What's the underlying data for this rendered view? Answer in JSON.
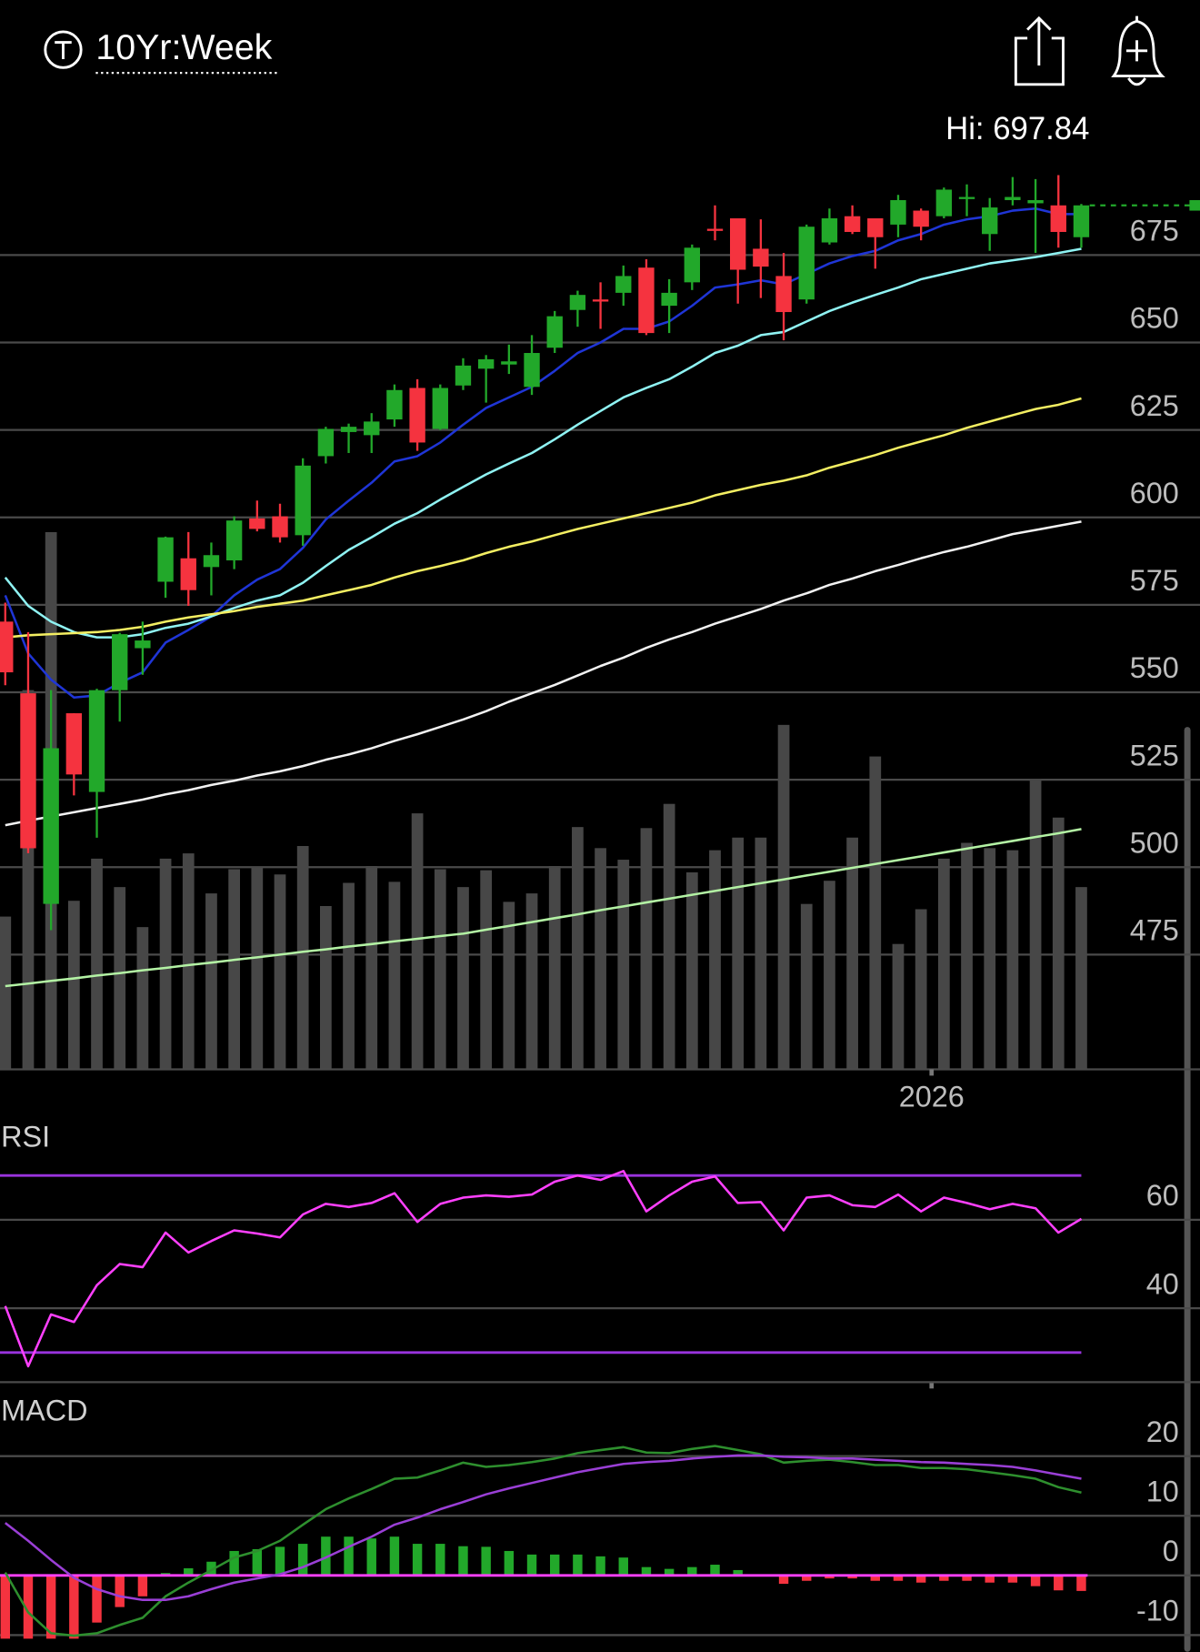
{
  "header": {
    "title": "10Yr:Week"
  },
  "chart_data": [
    {
      "type": "candlestick",
      "annotation": "Hi: 697.84",
      "categories": [
        null,
        null,
        null,
        null,
        null,
        null,
        null,
        null,
        null,
        null,
        null,
        null,
        null,
        null,
        null,
        null,
        null,
        null,
        null,
        null,
        null,
        null,
        null,
        null,
        null,
        null,
        null,
        null,
        null,
        null,
        null,
        null,
        null,
        null,
        null,
        null,
        null,
        null,
        null,
        null,
        "2026",
        null,
        null,
        null,
        null,
        null,
        null,
        null
      ],
      "open": [
        570.2,
        549.7,
        489.5,
        544.0,
        521.5,
        550.6,
        562.6,
        581.6,
        588.3,
        585.8,
        587.7,
        599.7,
        600.3,
        594.9,
        617.5,
        624.4,
        623.5,
        628.0,
        637.0,
        625.3,
        637.7,
        642.5,
        643.7,
        637.3,
        648.5,
        659.3,
        662.3,
        664.2,
        671.4,
        660.5,
        667.2,
        682.5,
        685.5,
        676.8,
        669.0,
        662.3,
        678.6,
        686.1,
        685.5,
        683.7,
        687.7,
        686.1,
        691.0,
        681.0,
        690.7,
        689.8,
        689.2,
        680.1
      ],
      "high": [
        575.6,
        567.2,
        550.6,
        544.0,
        551.0,
        567.0,
        570.2,
        594.5,
        595.8,
        592.8,
        600.3,
        604.8,
        603.9,
        616.9,
        625.9,
        626.8,
        629.8,
        638.0,
        639.5,
        638.0,
        645.5,
        646.4,
        649.4,
        652.1,
        659.0,
        664.8,
        667.2,
        672.0,
        673.8,
        668.1,
        678.0,
        689.2,
        685.5,
        685.2,
        675.6,
        683.7,
        688.3,
        689.2,
        685.5,
        692.2,
        688.3,
        694.3,
        695.2,
        691.3,
        697.3,
        696.7,
        697.84,
        689.6
      ],
      "low": [
        552.0,
        504.0,
        482.0,
        520.5,
        508.4,
        541.6,
        555.0,
        577.0,
        574.7,
        577.7,
        585.2,
        596.0,
        592.8,
        591.9,
        615.4,
        618.4,
        618.4,
        625.9,
        619.0,
        625.0,
        636.4,
        632.8,
        641.0,
        635.0,
        647.0,
        654.5,
        653.9,
        660.5,
        652.1,
        652.7,
        665.0,
        679.2,
        661.1,
        662.7,
        650.6,
        661.1,
        678.0,
        681.0,
        671.1,
        680.1,
        679.2,
        685.5,
        686.1,
        676.2,
        689.2,
        675.6,
        677.1,
        677.1
      ],
      "close": [
        555.7,
        505.4,
        534.0,
        526.5,
        550.6,
        566.6,
        564.8,
        594.3,
        579.2,
        589.2,
        599.1,
        596.7,
        594.3,
        614.8,
        625.3,
        625.9,
        627.4,
        636.4,
        621.4,
        637.0,
        643.4,
        645.2,
        644.6,
        647.0,
        657.5,
        663.6,
        661.7,
        669.0,
        652.7,
        664.2,
        677.1,
        681.9,
        670.8,
        671.7,
        658.7,
        683.1,
        685.5,
        681.6,
        680.1,
        690.7,
        683.1,
        693.7,
        691.6,
        688.6,
        691.6,
        690.7,
        681.6,
        689.2
      ],
      "up_color": "#22a82a",
      "down_color": "#f5333f",
      "volume": [
        145,
        360,
        510,
        160,
        200,
        173,
        135,
        200,
        205,
        167,
        190,
        192,
        185,
        212,
        155,
        177,
        193,
        178,
        243,
        190,
        173,
        189,
        159,
        167,
        193,
        230,
        210,
        199,
        229,
        252,
        187,
        208,
        220,
        220,
        327,
        157,
        179,
        220,
        297,
        119,
        152,
        200,
        215,
        210,
        208,
        275,
        239,
        173
      ],
      "volume_color": "#474747",
      "volume_lim": [
        0,
        680
      ],
      "series": [
        {
          "color": "#1f35d6",
          "values": [
            577.7,
            561.1,
            553.6,
            548.5,
            549.1,
            552.7,
            555.7,
            564.2,
            567.8,
            571.7,
            577.7,
            582.2,
            585.2,
            591.3,
            599.4,
            604.8,
            609.9,
            616.0,
            617.5,
            621.4,
            626.5,
            631.3,
            634.3,
            637.3,
            641.9,
            647.0,
            650.0,
            653.9,
            653.9,
            656.0,
            660.5,
            665.7,
            666.6,
            667.8,
            666.6,
            669.6,
            672.6,
            674.7,
            676.2,
            679.2,
            681.0,
            683.7,
            685.2,
            686.1,
            687.7,
            688.3,
            686.7,
            686.7
          ]
        },
        {
          "color": "#8ff3f3",
          "values": [
            582.8,
            574.7,
            570.2,
            567.2,
            565.7,
            565.7,
            566.6,
            568.4,
            569.6,
            571.7,
            574.1,
            576.2,
            577.7,
            581.3,
            586.1,
            590.7,
            594.3,
            598.2,
            601.2,
            605.1,
            608.7,
            612.3,
            615.4,
            618.4,
            622.3,
            626.5,
            630.4,
            634.3,
            637.0,
            639.5,
            643.1,
            647.0,
            649.1,
            652.1,
            653.0,
            656.0,
            659.0,
            661.4,
            663.6,
            665.7,
            668.1,
            669.6,
            671.1,
            672.6,
            673.5,
            674.4,
            675.6,
            676.8
          ]
        },
        {
          "color": "#f3ee62",
          "values": [
            565.7,
            566.3,
            566.6,
            566.9,
            567.2,
            567.8,
            568.7,
            570.2,
            571.4,
            572.3,
            573.2,
            574.4,
            575.3,
            576.2,
            577.7,
            579.2,
            580.7,
            582.8,
            584.6,
            586.1,
            587.7,
            589.8,
            591.6,
            593.1,
            594.9,
            596.7,
            598.2,
            599.7,
            601.2,
            602.7,
            604.2,
            606.3,
            607.8,
            609.3,
            610.5,
            612.0,
            614.2,
            616.0,
            617.8,
            619.9,
            621.7,
            623.5,
            625.6,
            627.4,
            629.2,
            631.0,
            632.2,
            634.0
          ]
        },
        {
          "color": "#f2f2f2",
          "values": [
            512.0,
            513.3,
            514.5,
            515.7,
            516.9,
            518.1,
            519.3,
            520.8,
            522.0,
            523.5,
            524.7,
            526.2,
            527.4,
            528.9,
            530.7,
            532.2,
            534.0,
            536.1,
            538.0,
            540.1,
            542.2,
            544.6,
            547.3,
            549.7,
            552.1,
            554.8,
            557.5,
            559.9,
            562.7,
            565.1,
            567.2,
            569.6,
            571.7,
            573.8,
            576.2,
            578.3,
            580.7,
            582.5,
            584.6,
            586.4,
            588.3,
            590.1,
            591.6,
            593.4,
            595.2,
            596.4,
            597.6,
            598.8
          ]
        },
        {
          "color": "#b3f2a4",
          "values": [
            466.0,
            466.7,
            467.5,
            468.2,
            469.0,
            469.7,
            470.5,
            471.2,
            472.0,
            472.7,
            473.5,
            474.2,
            475.0,
            475.8,
            476.5,
            477.3,
            478.0,
            478.8,
            479.5,
            480.3,
            481.0,
            482.1,
            483.2,
            484.3,
            485.4,
            486.5,
            487.7,
            488.8,
            489.9,
            491.0,
            492.1,
            493.2,
            494.3,
            495.4,
            496.5,
            497.6,
            498.7,
            499.8,
            500.9,
            502.0,
            503.1,
            504.2,
            505.3,
            506.4,
            507.5,
            508.6,
            509.7,
            510.9
          ]
        }
      ],
      "ylim": [
        442.2,
        705.7
      ],
      "yticks": [
        475,
        500,
        525,
        550,
        575,
        600,
        625,
        650,
        675
      ],
      "grid": true,
      "last_price_line": true
    },
    {
      "type": "line",
      "title": "RSI",
      "series": [
        {
          "color": "#ff40ff",
          "values": [
            40.5,
            26.9,
            38.6,
            36.9,
            45.2,
            50.0,
            49.3,
            57.1,
            52.6,
            55.2,
            57.6,
            56.9,
            56.0,
            61.2,
            63.6,
            62.9,
            63.8,
            66.0,
            59.5,
            63.6,
            65.0,
            65.5,
            65.2,
            65.7,
            68.6,
            70.0,
            69.0,
            71.0,
            61.9,
            65.5,
            68.6,
            69.8,
            63.8,
            64.0,
            57.6,
            65.0,
            65.5,
            63.3,
            62.9,
            65.7,
            61.9,
            65.0,
            63.8,
            62.4,
            63.6,
            62.6,
            57.1,
            60.2
          ]
        }
      ],
      "bands": [
        30,
        70
      ],
      "band_color": "#9933dd",
      "ylim": [
        23.3,
        82.1
      ],
      "yticks": [
        40,
        60
      ],
      "grid": true
    },
    {
      "type": "macd",
      "title": "MACD",
      "series": [
        {
          "color": "#2e8f2e",
          "values": [
            0.5,
            -6.2,
            -9.7,
            -10.1,
            -9.7,
            -8.3,
            -7.1,
            -3.5,
            -1.2,
            0.9,
            3.0,
            4.1,
            5.8,
            8.5,
            11.1,
            12.9,
            14.5,
            16.2,
            16.4,
            17.6,
            18.9,
            18.2,
            18.5,
            19.0,
            19.6,
            20.5,
            21.0,
            21.5,
            20.6,
            20.5,
            21.2,
            21.7,
            21.0,
            20.3,
            18.9,
            19.2,
            19.4,
            19.0,
            18.5,
            18.5,
            18.0,
            18.0,
            17.8,
            17.3,
            16.8,
            16.2,
            14.8,
            13.9
          ]
        },
        {
          "color": "#9a3fd6",
          "values": [
            8.8,
            5.8,
            2.6,
            -0.4,
            -2.3,
            -3.5,
            -4.1,
            -4.1,
            -3.5,
            -2.3,
            -1.2,
            -0.5,
            0.2,
            1.4,
            3.0,
            4.8,
            6.5,
            8.5,
            9.7,
            11.1,
            12.3,
            13.6,
            14.6,
            15.5,
            16.4,
            17.3,
            18.0,
            18.7,
            19.0,
            19.2,
            19.6,
            19.9,
            20.1,
            20.1,
            19.9,
            19.8,
            19.6,
            19.6,
            19.4,
            19.2,
            19.0,
            18.9,
            18.7,
            18.5,
            18.2,
            17.6,
            16.9,
            16.2
          ]
        }
      ],
      "histogram": [
        -10.6,
        -10.6,
        -10.6,
        -10.6,
        -7.9,
        -5.3,
        -3.5,
        0.4,
        1.2,
        2.3,
        4.1,
        4.4,
        4.8,
        5.3,
        6.5,
        6.5,
        6.2,
        6.5,
        5.3,
        5.3,
        4.9,
        4.8,
        4.1,
        3.5,
        3.5,
        3.5,
        3.2,
        3.0,
        1.4,
        1.1,
        1.4,
        1.8,
        0.9,
        0.2,
        -1.4,
        -0.9,
        -0.5,
        -0.5,
        -0.9,
        -0.9,
        -1.2,
        -0.9,
        -0.9,
        -1.2,
        -1.2,
        -1.8,
        -2.5,
        -2.6
      ],
      "up_color": "#22a82a",
      "down_color": "#f5333f",
      "zero_color": "#ff40ff",
      "ylim": [
        -12.8,
        30.1
      ],
      "yticks": [
        -10,
        0,
        10,
        20
      ],
      "grid": true
    }
  ]
}
